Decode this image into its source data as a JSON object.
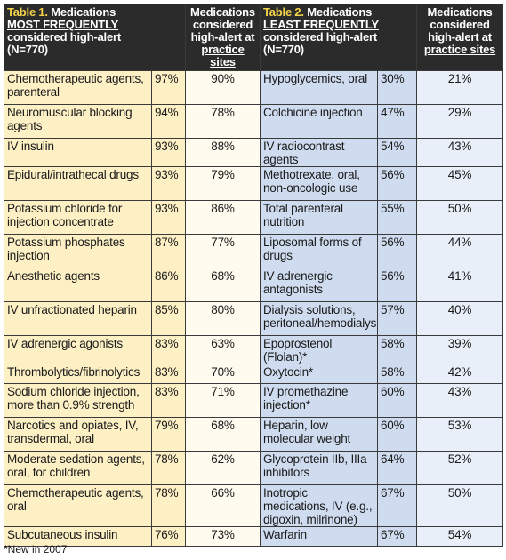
{
  "left_header": {
    "tag": "Table 1.",
    "title": "Medications",
    "emphasis": "MOST FREQUENTLY",
    "subtitle": "considered high-alert",
    "n": "(N=770)"
  },
  "left_practice_header": {
    "line1": "Medications",
    "line2": "considered",
    "line3": "high-alert at",
    "line4": "practice sites"
  },
  "right_header": {
    "tag": "Table 2.",
    "title": "Medications",
    "emphasis": "LEAST FREQUENTLY",
    "subtitle": "considered high-alert",
    "n": "(N=770)"
  },
  "right_practice_header": {
    "line1": "Medications",
    "line2": "considered",
    "line3": "high-alert at",
    "line4": "practice sites"
  },
  "rows": [
    {
      "left_name": "Chemotherapeutic agents, parenteral",
      "left_pct": "97%",
      "left_practice": "90%",
      "right_name": "Hypoglycemics, oral",
      "right_pct": "30%",
      "right_practice": "21%"
    },
    {
      "left_name": "Neuromuscular blocking agents",
      "left_pct": "94%",
      "left_practice": "78%",
      "right_name": "Colchicine injection",
      "right_pct": "47%",
      "right_practice": "29%"
    },
    {
      "left_name": "IV insulin",
      "left_pct": "93%",
      "left_practice": "88%",
      "right_name": "IV radiocontrast agents",
      "right_pct": "54%",
      "right_practice": "43%"
    },
    {
      "left_name": "Epidural/intrathecal drugs",
      "left_pct": "93%",
      "left_practice": "79%",
      "right_name": "Methotrexate, oral, non-oncologic use",
      "right_pct": "56%",
      "right_practice": "45%"
    },
    {
      "left_name": "Potassium chloride for injection concentrate",
      "left_pct": "93%",
      "left_practice": "86%",
      "right_name": "Total parenteral nutrition",
      "right_pct": "55%",
      "right_practice": "50%"
    },
    {
      "left_name": "Potassium phosphates injection",
      "left_pct": "87%",
      "left_practice": "77%",
      "right_name": "Liposomal forms of drugs",
      "right_pct": "56%",
      "right_practice": "44%"
    },
    {
      "left_name": "Anesthetic agents",
      "left_pct": "86%",
      "left_practice": "68%",
      "right_name": "IV adrenergic antagonists",
      "right_pct": "56%",
      "right_practice": "41%"
    },
    {
      "left_name": "IV unfractionated heparin",
      "left_pct": "85%",
      "left_practice": "80%",
      "right_name": "Dialysis solutions, peritoneal/hemodialysis",
      "right_pct": "57%",
      "right_practice": "40%"
    },
    {
      "left_name": "IV adrenergic agonists",
      "left_pct": "83%",
      "left_practice": "63%",
      "right_name": "Epoprostenol (Flolan)*",
      "right_pct": "58%",
      "right_practice": "39%"
    },
    {
      "left_name": "Thrombolytics/fibrinolytics",
      "left_pct": "83%",
      "left_practice": "70%",
      "right_name": "Oxytocin*",
      "right_pct": "58%",
      "right_practice": "42%"
    },
    {
      "left_name": "Sodium chloride injection, more than 0.9% strength",
      "left_pct": "83%",
      "left_practice": "71%",
      "right_name": "IV promethazine injection*",
      "right_pct": "60%",
      "right_practice": "43%"
    },
    {
      "left_name": "Narcotics and opiates, IV, transdermal, oral",
      "left_pct": "79%",
      "left_practice": "68%",
      "right_name": "Heparin, low molecular weight",
      "right_pct": "60%",
      "right_practice": "53%"
    },
    {
      "left_name": "Moderate sedation agents, oral, for children",
      "left_pct": "78%",
      "left_practice": "62%",
      "right_name": "Glycoprotein IIb, IIIa inhibitors",
      "right_pct": "64%",
      "right_practice": "52%"
    },
    {
      "left_name": "Chemotherapeutic agents, oral",
      "left_pct": "78%",
      "left_practice": "66%",
      "right_name": "Inotropic medications, IV (e.g., digoxin, milrinone)",
      "right_pct": "67%",
      "right_practice": "50%"
    },
    {
      "left_name": "Subcutaneous insulin",
      "left_pct": "76%",
      "left_practice": "73%",
      "right_name": "Warfarin",
      "right_pct": "67%",
      "right_practice": "54%"
    }
  ],
  "footnote": "*New in 2007",
  "colors": {
    "header_bg": "#2b2b2b",
    "header_tag": "#f5d34a",
    "left_fill": "#fdf0c4",
    "left_practice_fill": "#fffbee",
    "right_fill": "#cfdcef",
    "right_practice_fill": "#e9eff8"
  }
}
